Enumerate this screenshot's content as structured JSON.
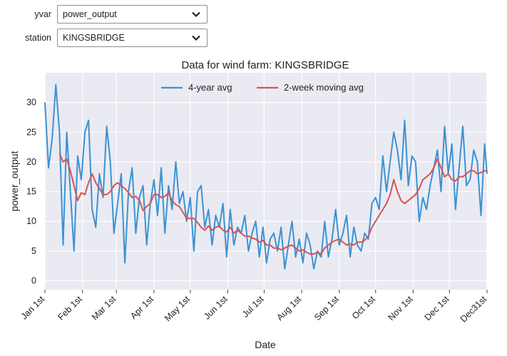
{
  "controls": {
    "yvar_label": "yvar",
    "yvar_value": "power_output",
    "station_label": "station",
    "station_value": "KINGSBRIDGE"
  },
  "chart_data": {
    "type": "line",
    "title": "Data for wind farm: KINGSBRIDGE",
    "xlabel": "Date",
    "ylabel": "power_output",
    "x_unit": "day of year",
    "xlim": [
      1,
      366
    ],
    "ylim": [
      -1.5,
      35
    ],
    "yticks": [
      0,
      5,
      10,
      15,
      20,
      25,
      30
    ],
    "xticks": [
      {
        "day": 1,
        "label": "Jan 1st"
      },
      {
        "day": 32,
        "label": "Feb 1st"
      },
      {
        "day": 60,
        "label": "Mar 1st"
      },
      {
        "day": 91,
        "label": "Apr 1st"
      },
      {
        "day": 121,
        "label": "May 1st"
      },
      {
        "day": 152,
        "label": "Jun 1st"
      },
      {
        "day": 182,
        "label": "Jul 1st"
      },
      {
        "day": 213,
        "label": "Aug 1st"
      },
      {
        "day": 244,
        "label": "Sep 1st"
      },
      {
        "day": 274,
        "label": "Oct 1st"
      },
      {
        "day": 305,
        "label": "Nov 1st"
      },
      {
        "day": 335,
        "label": "Dec 1st"
      },
      {
        "day": 366,
        "label": "Dec31st"
      }
    ],
    "grid": true,
    "legend_position": "top-center",
    "series": [
      {
        "name": "4-year avg",
        "color": "#3a93d4",
        "x": [
          1,
          4,
          7,
          10,
          13,
          16,
          19,
          22,
          25,
          28,
          31,
          34,
          37,
          40,
          43,
          46,
          49,
          52,
          55,
          58,
          61,
          64,
          67,
          70,
          73,
          76,
          79,
          82,
          85,
          88,
          91,
          94,
          97,
          100,
          103,
          106,
          109,
          112,
          115,
          118,
          121,
          124,
          127,
          130,
          133,
          136,
          139,
          142,
          145,
          148,
          151,
          154,
          157,
          160,
          163,
          166,
          169,
          172,
          175,
          178,
          181,
          184,
          187,
          190,
          193,
          196,
          199,
          202,
          205,
          208,
          211,
          214,
          217,
          220,
          223,
          226,
          229,
          232,
          235,
          238,
          241,
          244,
          247,
          250,
          253,
          256,
          259,
          262,
          265,
          268,
          271,
          274,
          277,
          280,
          283,
          286,
          289,
          292,
          295,
          298,
          301,
          304,
          307,
          310,
          313,
          316,
          319,
          322,
          325,
          328,
          331,
          334,
          337,
          340,
          343,
          346,
          349,
          352,
          355,
          358,
          361,
          364,
          366
        ],
        "values": [
          30,
          19,
          24,
          33,
          25,
          6,
          25,
          15,
          5,
          21,
          17,
          25,
          27,
          12,
          9,
          18,
          14,
          26,
          20,
          8,
          13,
          18,
          3,
          15,
          19,
          8,
          14,
          16,
          6,
          13,
          17,
          11,
          19,
          8,
          16,
          12,
          20,
          13,
          15,
          10,
          14,
          5,
          15,
          16,
          9,
          12,
          6,
          11,
          9,
          13,
          4,
          12,
          6,
          9,
          8,
          11,
          5,
          8,
          10,
          4,
          9,
          3,
          7,
          8,
          5,
          9,
          2,
          6,
          10,
          4,
          7,
          3,
          8,
          6,
          2,
          5,
          4,
          10,
          4,
          7,
          12,
          6,
          8,
          11,
          4,
          9,
          6,
          5,
          8,
          7,
          13,
          14,
          12,
          21,
          15,
          20,
          25,
          22,
          17,
          27,
          16,
          21,
          20,
          10,
          14,
          12,
          16,
          19,
          22,
          15,
          26,
          18,
          23,
          12,
          19,
          26,
          16,
          17,
          22,
          20,
          11,
          23,
          18
        ]
      },
      {
        "name": "2-week moving avg",
        "color": "#d9534f",
        "x": [
          13,
          16,
          19,
          22,
          25,
          28,
          31,
          34,
          37,
          40,
          43,
          46,
          49,
          52,
          55,
          58,
          61,
          64,
          67,
          70,
          73,
          76,
          79,
          82,
          85,
          88,
          91,
          94,
          97,
          100,
          103,
          106,
          109,
          112,
          115,
          118,
          121,
          124,
          127,
          130,
          133,
          136,
          139,
          142,
          145,
          148,
          151,
          154,
          157,
          160,
          163,
          166,
          169,
          172,
          175,
          178,
          181,
          184,
          187,
          190,
          193,
          196,
          199,
          202,
          205,
          208,
          211,
          214,
          217,
          220,
          223,
          226,
          229,
          232,
          235,
          238,
          241,
          244,
          247,
          250,
          253,
          256,
          259,
          262,
          265,
          268,
          271,
          274,
          277,
          280,
          283,
          286,
          289,
          292,
          295,
          298,
          301,
          304,
          307,
          310,
          313,
          316,
          319,
          322,
          325,
          328,
          331,
          334,
          337,
          340,
          343,
          346,
          349,
          352,
          355,
          358,
          361,
          364,
          366
        ],
        "values": [
          21.5,
          20,
          20.5,
          18.5,
          16,
          13.5,
          14.8,
          14.5,
          16.5,
          18,
          16.5,
          15.5,
          14.5,
          14.5,
          15,
          16,
          16.5,
          16,
          15.5,
          14.8,
          14,
          14.2,
          13.5,
          11.8,
          12.5,
          13,
          14.5,
          14.5,
          14,
          14.2,
          14.8,
          13.5,
          12.8,
          12.5,
          11.5,
          10.5,
          10.5,
          10.5,
          9.8,
          9,
          8.5,
          9.2,
          8.5,
          9,
          9.2,
          8.5,
          8.2,
          9,
          8,
          8.5,
          8,
          7.5,
          7.5,
          7.2,
          7,
          6.5,
          6.8,
          6,
          6,
          5.5,
          5.5,
          5.2,
          5.5,
          5.8,
          6,
          5.5,
          5,
          5.2,
          4.8,
          4.5,
          4.5,
          4.8,
          4.5,
          5.5,
          6,
          6.5,
          6.8,
          7,
          6.5,
          6,
          6.2,
          6,
          6.5,
          6.5,
          6.8,
          7.5,
          9,
          10,
          11,
          12,
          13,
          14.5,
          17,
          15,
          13.5,
          13,
          13.5,
          14,
          14.5,
          15.5,
          17,
          17.5,
          18,
          19,
          20.5,
          19,
          17.5,
          18,
          17,
          16.8,
          17.5,
          17.5,
          18,
          18.5,
          18.5,
          18,
          18.2,
          18.5,
          18.5
        ]
      }
    ]
  }
}
